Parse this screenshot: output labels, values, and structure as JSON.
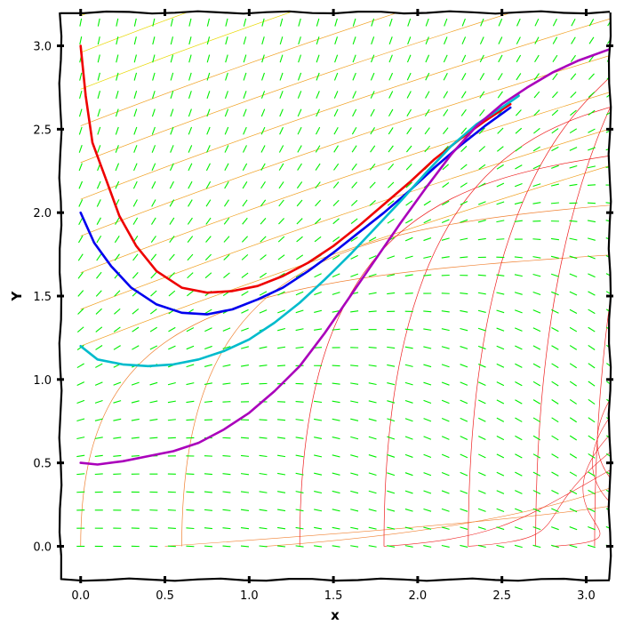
{
  "chart_data": {
    "type": "line",
    "title": "",
    "xlabel": "x",
    "ylabel": "Y",
    "xlim": [
      -0.12,
      3.14
    ],
    "ylim": [
      -0.2,
      3.2
    ],
    "grid": false,
    "legend": "none",
    "x_ticks": [
      "0.0",
      "0.5",
      "1.0",
      "1.5",
      "2.0",
      "2.5",
      "3.0"
    ],
    "y_ticks": [
      "0.0",
      "0.5",
      "1.0",
      "1.5",
      "2.0",
      "2.5",
      "3.0"
    ],
    "direction_field_color": "#00ee00",
    "series": [
      {
        "color": "#ee0000",
        "points": [
          [
            0.0,
            3.0
          ],
          [
            0.03,
            2.7
          ],
          [
            0.07,
            2.42
          ],
          [
            0.15,
            2.2
          ],
          [
            0.23,
            1.98
          ],
          [
            0.33,
            1.8
          ],
          [
            0.45,
            1.65
          ],
          [
            0.6,
            1.55
          ],
          [
            0.75,
            1.52
          ],
          [
            0.9,
            1.53
          ],
          [
            1.05,
            1.56
          ],
          [
            1.2,
            1.62
          ],
          [
            1.35,
            1.7
          ],
          [
            1.5,
            1.8
          ],
          [
            1.65,
            1.92
          ],
          [
            1.8,
            2.05
          ],
          [
            1.95,
            2.18
          ],
          [
            2.1,
            2.32
          ],
          [
            2.25,
            2.44
          ],
          [
            2.4,
            2.55
          ],
          [
            2.55,
            2.65
          ]
        ]
      },
      {
        "color": "#0000ee",
        "points": [
          [
            0.0,
            2.0
          ],
          [
            0.08,
            1.82
          ],
          [
            0.18,
            1.68
          ],
          [
            0.3,
            1.55
          ],
          [
            0.45,
            1.45
          ],
          [
            0.6,
            1.4
          ],
          [
            0.75,
            1.39
          ],
          [
            0.9,
            1.42
          ],
          [
            1.05,
            1.48
          ],
          [
            1.2,
            1.55
          ],
          [
            1.35,
            1.65
          ],
          [
            1.5,
            1.76
          ],
          [
            1.65,
            1.88
          ],
          [
            1.8,
            2.0
          ],
          [
            1.95,
            2.13
          ],
          [
            2.1,
            2.27
          ],
          [
            2.25,
            2.4
          ],
          [
            2.4,
            2.52
          ],
          [
            2.55,
            2.63
          ]
        ]
      },
      {
        "color": "#00bbcc",
        "points": [
          [
            0.0,
            1.2
          ],
          [
            0.1,
            1.12
          ],
          [
            0.25,
            1.09
          ],
          [
            0.4,
            1.08
          ],
          [
            0.55,
            1.09
          ],
          [
            0.7,
            1.12
          ],
          [
            0.85,
            1.17
          ],
          [
            1.0,
            1.24
          ],
          [
            1.15,
            1.34
          ],
          [
            1.3,
            1.46
          ],
          [
            1.45,
            1.6
          ],
          [
            1.6,
            1.75
          ],
          [
            1.75,
            1.91
          ],
          [
            1.9,
            2.07
          ],
          [
            2.05,
            2.24
          ],
          [
            2.2,
            2.4
          ],
          [
            2.35,
            2.53
          ],
          [
            2.5,
            2.63
          ],
          [
            2.6,
            2.7
          ]
        ]
      },
      {
        "color": "#aa00bb",
        "points": [
          [
            0.0,
            0.5
          ],
          [
            0.1,
            0.49
          ],
          [
            0.25,
            0.51
          ],
          [
            0.4,
            0.54
          ],
          [
            0.55,
            0.57
          ],
          [
            0.7,
            0.62
          ],
          [
            0.85,
            0.7
          ],
          [
            1.0,
            0.8
          ],
          [
            1.15,
            0.93
          ],
          [
            1.3,
            1.08
          ],
          [
            1.45,
            1.28
          ],
          [
            1.6,
            1.5
          ],
          [
            1.75,
            1.72
          ],
          [
            1.9,
            1.94
          ],
          [
            2.05,
            2.15
          ],
          [
            2.2,
            2.35
          ],
          [
            2.35,
            2.52
          ],
          [
            2.5,
            2.65
          ],
          [
            2.65,
            2.75
          ],
          [
            2.8,
            2.84
          ],
          [
            2.95,
            2.91
          ],
          [
            3.14,
            2.98
          ]
        ]
      }
    ]
  }
}
